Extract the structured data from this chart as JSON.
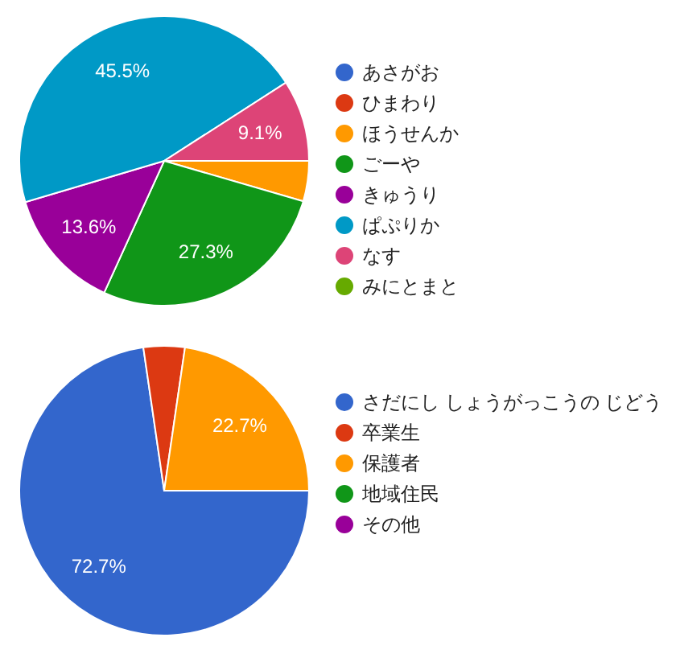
{
  "chart_data": [
    {
      "type": "pie",
      "categories": [
        "あさがお",
        "ひまわり",
        "ほうせんか",
        "ごーや",
        "きゅうり",
        "ぱぷりか",
        "なす",
        "みにとまと"
      ],
      "values": [
        0,
        0,
        4.5,
        27.3,
        13.6,
        45.5,
        9.1,
        0
      ],
      "colors": [
        "#3366cc",
        "#dc3912",
        "#ff9900",
        "#109618",
        "#990099",
        "#0099c6",
        "#dd4477",
        "#66aa00"
      ],
      "value_labels": [
        null,
        null,
        null,
        "27.3%",
        "13.6%",
        "45.5%",
        "9.1%",
        null
      ],
      "legend": "right"
    },
    {
      "type": "pie",
      "categories": [
        "さだにし しょうがっこうの じどう",
        "卒業生",
        "保護者",
        "地域住民",
        "その他"
      ],
      "values": [
        72.7,
        4.6,
        22.7,
        0,
        0
      ],
      "colors": [
        "#3366cc",
        "#dc3912",
        "#ff9900",
        "#109618",
        "#990099"
      ],
      "value_labels": [
        "72.7%",
        null,
        "22.7%",
        null,
        null
      ],
      "legend": "right"
    }
  ]
}
